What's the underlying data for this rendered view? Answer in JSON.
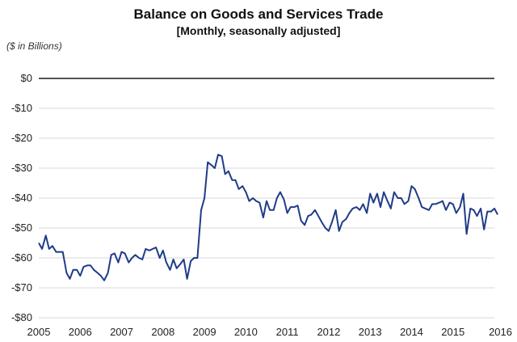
{
  "chart_data": {
    "type": "line",
    "title": "Balance on Goods and Services Trade",
    "subtitle": "[Monthly, seasonally adjusted]",
    "ylabel": "($ in Billions)",
    "xlabel": "",
    "xlim": [
      2005,
      2016
    ],
    "ylim": [
      -80,
      0
    ],
    "y_ticks": [
      "$0",
      "-$10",
      "-$20",
      "-$30",
      "-$40",
      "-$50",
      "-$60",
      "-$70",
      "-$80"
    ],
    "y_tick_values": [
      0,
      -10,
      -20,
      -30,
      -40,
      -50,
      -60,
      -70,
      -80
    ],
    "x_ticks": [
      "2005",
      "2006",
      "2007",
      "2008",
      "2009",
      "2010",
      "2011",
      "2012",
      "2013",
      "2014",
      "2015",
      "2016"
    ],
    "x_tick_values": [
      2005,
      2006,
      2007,
      2008,
      2009,
      2010,
      2011,
      2012,
      2013,
      2014,
      2015,
      2016
    ],
    "grid": true,
    "line_color": "#1f3c88",
    "series": [
      {
        "x": [
          2005.0,
          2005.08,
          2005.17,
          2005.25,
          2005.33,
          2005.42,
          2005.5,
          2005.58,
          2005.67,
          2005.75,
          2005.83,
          2005.92,
          2006.0,
          2006.08,
          2006.17,
          2006.25,
          2006.33,
          2006.42,
          2006.5,
          2006.58,
          2006.67,
          2006.75,
          2006.83,
          2006.92,
          2007.0,
          2007.08,
          2007.17,
          2007.25,
          2007.33,
          2007.42,
          2007.5,
          2007.58,
          2007.67,
          2007.75,
          2007.83,
          2007.92,
          2008.0,
          2008.08,
          2008.17,
          2008.25,
          2008.33,
          2008.42,
          2008.5,
          2008.58,
          2008.67,
          2008.75,
          2008.83,
          2008.92,
          2009.0,
          2009.08,
          2009.17,
          2009.25,
          2009.33,
          2009.42,
          2009.5,
          2009.58,
          2009.67,
          2009.75,
          2009.83,
          2009.92,
          2010.0,
          2010.08,
          2010.17,
          2010.25,
          2010.33,
          2010.42,
          2010.5,
          2010.58,
          2010.67,
          2010.75,
          2010.83,
          2010.92,
          2011.0,
          2011.08,
          2011.17,
          2011.25,
          2011.33,
          2011.42,
          2011.5,
          2011.58,
          2011.67,
          2011.75,
          2011.83,
          2011.92,
          2012.0,
          2012.08,
          2012.17,
          2012.25,
          2012.33,
          2012.42,
          2012.5,
          2012.58,
          2012.67,
          2012.75,
          2012.83,
          2012.92,
          2013.0,
          2013.08,
          2013.17,
          2013.25,
          2013.33,
          2013.42,
          2013.5,
          2013.58,
          2013.67,
          2013.75,
          2013.83,
          2013.92,
          2014.0,
          2014.08,
          2014.17,
          2014.25,
          2014.33,
          2014.42,
          2014.5,
          2014.58,
          2014.67,
          2014.75,
          2014.83,
          2014.92,
          2015.0,
          2015.08,
          2015.17,
          2015.25,
          2015.33,
          2015.42,
          2015.5,
          2015.58,
          2015.67,
          2015.75,
          2015.83,
          2015.92
        ],
        "y": [
          -55,
          -57,
          -52.5,
          -57,
          -56,
          -58,
          -58,
          -58,
          -65,
          -67,
          -64,
          -64,
          -66,
          -63,
          -62.5,
          -62.5,
          -64,
          -65,
          -66,
          -67.5,
          -65,
          -59,
          -58.5,
          -61.5,
          -58,
          -58.5,
          -61.5,
          -60,
          -59,
          -60,
          -60.5,
          -57,
          -57.5,
          -57,
          -56.5,
          -60,
          -57.5,
          -61.5,
          -64,
          -60.5,
          -63.5,
          -62,
          -60.5,
          -67,
          -61,
          -60,
          -60,
          -44,
          -40,
          -28,
          -29,
          -30,
          -25.5,
          -26,
          -32,
          -31,
          -34,
          -34,
          -37,
          -36,
          -38,
          -41,
          -40,
          -41,
          -41.5,
          -46.5,
          -41,
          -44,
          -44,
          -40,
          -38,
          -40.5,
          -45,
          -43,
          -43,
          -42.5,
          -47.5,
          -49,
          -46,
          -45.5,
          -44,
          -46,
          -48,
          -50,
          -51,
          -48,
          -44,
          -51,
          -48,
          -47,
          -45,
          -43.5,
          -43,
          -44,
          -42,
          -45,
          -38.5,
          -41.5,
          -38.5,
          -43,
          -38,
          -41,
          -43.5,
          -38,
          -40,
          -40,
          -42,
          -41,
          -36,
          -37,
          -40,
          -43,
          -43.5,
          -44,
          -42,
          -42,
          -41.5,
          -41,
          -44,
          -41.5,
          -42,
          -45,
          -43,
          -38.5,
          -52,
          -43.5,
          -44,
          -46,
          -43.5,
          -50.5,
          -44.5,
          -44.5
        ]
      }
    ],
    "series_extra": {
      "last_points": [
        [
          2016.0,
          -43.5
        ],
        [
          2016.08,
          -45.5
        ]
      ]
    }
  }
}
